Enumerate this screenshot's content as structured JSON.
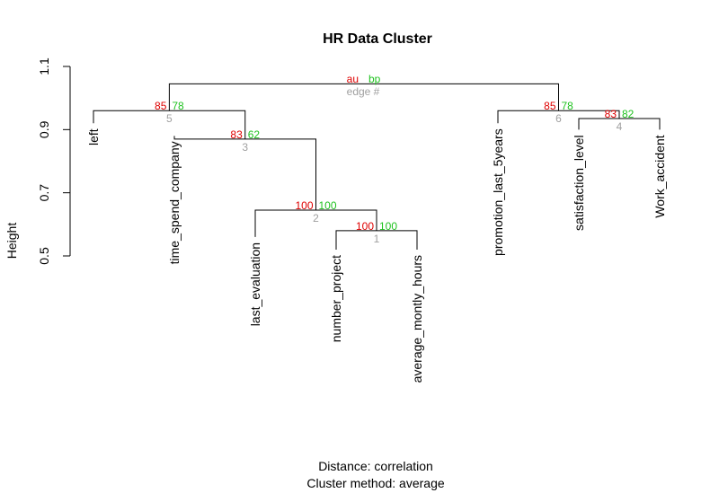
{
  "chart_data": {
    "type": "dendrogram",
    "title": "HR Data Cluster",
    "ylabel": "Height",
    "xlabel_line1": "Distance:  correlation",
    "xlabel_line2": "Cluster method: average",
    "ylim": [
      0.5,
      1.1
    ],
    "yticks": [
      0.5,
      0.7,
      0.9,
      1.1
    ],
    "leaves": [
      {
        "label": "left",
        "top": 0.92
      },
      {
        "label": "time_spend_company",
        "top": 0.88
      },
      {
        "label": "last_evaluation",
        "top": 0.56
      },
      {
        "label": "number_project",
        "top": 0.52
      },
      {
        "label": "average_montly_hours",
        "top": 0.52
      },
      {
        "label": "promotion_last_5years",
        "top": 0.92
      },
      {
        "label": "satisfaction_level",
        "top": 0.9
      },
      {
        "label": "Work_accident",
        "top": 0.9
      }
    ],
    "merges": [
      {
        "edge": "1",
        "left": -4,
        "right": -5,
        "height": 0.58,
        "au": "100",
        "bp": "100"
      },
      {
        "edge": "2",
        "left": -3,
        "right": 1,
        "height": 0.645,
        "au": "100",
        "bp": "100"
      },
      {
        "edge": "3",
        "left": -2,
        "right": 2,
        "height": 0.87,
        "au": "83",
        "bp": "62"
      },
      {
        "edge": "4",
        "left": -7,
        "right": -8,
        "height": 0.935,
        "au": "83",
        "bp": "82"
      },
      {
        "edge": "5",
        "left": -1,
        "right": 3,
        "height": 0.96,
        "au": "85",
        "bp": "78"
      },
      {
        "edge": "6",
        "left": -6,
        "right": 4,
        "height": 0.96,
        "au": "85",
        "bp": "78"
      },
      {
        "edge": "",
        "left": 5,
        "right": 6,
        "height": 1.045,
        "au": "",
        "bp": ""
      }
    ],
    "legend": {
      "au": "au",
      "bp": "bp",
      "edge": "edge #"
    },
    "colors": {
      "au": "#df0000",
      "bp": "#1fc21f",
      "edge": "#a0a0a0",
      "line": "#000000"
    }
  }
}
